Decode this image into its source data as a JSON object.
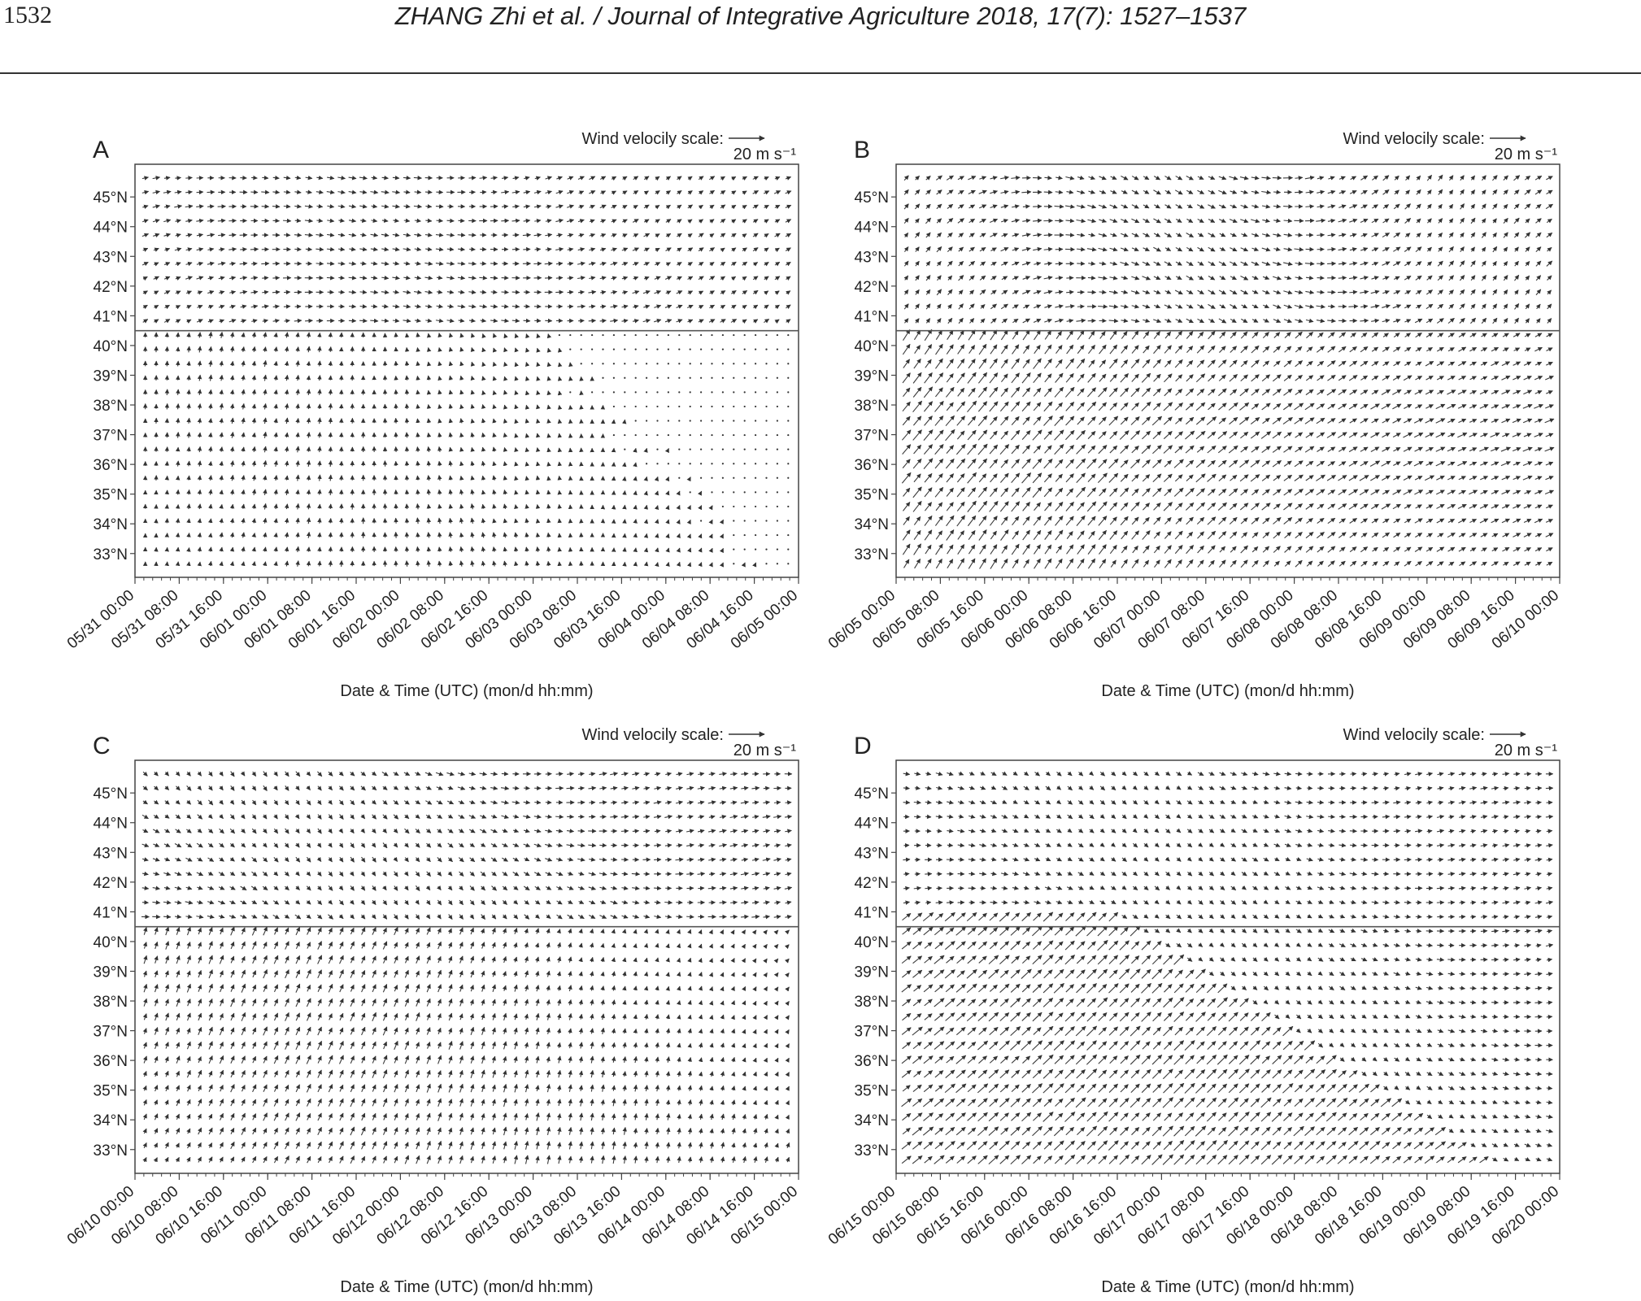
{
  "page": {
    "page_number": "1532",
    "running_header": "ZHANG Zhi et al. / Journal of Integrative Agriculture  2018, 17(7): 1527–1537"
  },
  "figure": {
    "wind_scale_label": "Wind velocily scale:",
    "wind_scale_value": "20 m s⁻¹",
    "xlabel": "Date & Time (UTC) (mon/d hh:mm)",
    "y_ticks": [
      "45°N",
      "44°N",
      "43°N",
      "42°N",
      "41°N",
      "40°N",
      "39°N",
      "38°N",
      "37°N",
      "36°N",
      "35°N",
      "34°N",
      "33°N"
    ],
    "reference_line_lat": 40.5
  },
  "chart_data": [
    {
      "type": "vector-field",
      "panel": "A",
      "x_ticks": [
        "05/31 00:00",
        "05/31 08:00",
        "05/31 16:00",
        "06/01 00:00",
        "06/01 08:00",
        "06/01 16:00",
        "06/02 00:00",
        "06/02 08:00",
        "06/02 16:00",
        "06/03 00:00",
        "06/03 08:00",
        "06/03 16:00",
        "06/04 00:00",
        "06/04 08:00",
        "06/04 16:00",
        "06/05 00:00"
      ],
      "xlabel": "Date & Time (UTC) (mon/d hh:mm)",
      "ylim": [
        32.2,
        46.1
      ],
      "reference_line_lat": 40.5
    },
    {
      "type": "vector-field",
      "panel": "B",
      "x_ticks": [
        "06/05 00:00",
        "06/05 08:00",
        "06/05 16:00",
        "06/06 00:00",
        "06/06 08:00",
        "06/06 16:00",
        "06/07 00:00",
        "06/07 08:00",
        "06/07 16:00",
        "06/08 00:00",
        "06/08 08:00",
        "06/08 16:00",
        "06/09 00:00",
        "06/09 08:00",
        "06/09 16:00",
        "06/10 00:00"
      ],
      "xlabel": "Date & Time (UTC) (mon/d hh:mm)",
      "ylim": [
        32.2,
        46.1
      ],
      "reference_line_lat": 40.5
    },
    {
      "type": "vector-field",
      "panel": "C",
      "x_ticks": [
        "06/10 00:00",
        "06/10 08:00",
        "06/10 16:00",
        "06/11 00:00",
        "06/11 08:00",
        "06/11 16:00",
        "06/12 00:00",
        "06/12 08:00",
        "06/12 16:00",
        "06/13 00:00",
        "06/13 08:00",
        "06/13 16:00",
        "06/14 00:00",
        "06/14 08:00",
        "06/14 16:00",
        "06/15 00:00"
      ],
      "xlabel": "Date & Time (UTC) (mon/d hh:mm)",
      "ylim": [
        32.2,
        46.1
      ],
      "reference_line_lat": 40.5
    },
    {
      "type": "vector-field",
      "panel": "D",
      "x_ticks": [
        "06/15 00:00",
        "06/15 08:00",
        "06/15 16:00",
        "06/16 00:00",
        "06/16 08:00",
        "06/16 16:00",
        "06/17 00:00",
        "06/17 08:00",
        "06/17 16:00",
        "06/18 00:00",
        "06/18 08:00",
        "06/18 16:00",
        "06/19 00:00",
        "06/19 08:00",
        "06/19 16:00",
        "06/20 00:00"
      ],
      "xlabel": "Date & Time (UTC) (mon/d hh:mm)",
      "ylim": [
        32.2,
        46.1
      ],
      "reference_line_lat": 40.5
    }
  ]
}
